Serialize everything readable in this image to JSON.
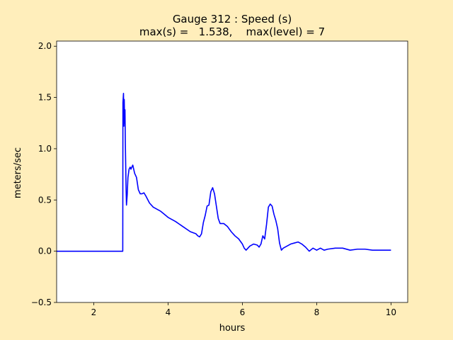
{
  "chart_data": {
    "type": "line",
    "title": "Gauge 312 : Speed (s)",
    "subtitle": "max(s) =   1.538,    max(level) = 7",
    "xlabel": "hours",
    "ylabel": "meters/sec",
    "xlim": [
      1.0,
      10.45
    ],
    "ylim": [
      -0.5,
      2.05
    ],
    "xticks": [
      2,
      4,
      6,
      8,
      10
    ],
    "yticks": [
      -0.5,
      0.0,
      0.5,
      1.0,
      1.5,
      2.0
    ],
    "ytick_labels": [
      "−0.5",
      "0.0",
      "0.5",
      "1.0",
      "1.5",
      "2.0"
    ],
    "grid": false,
    "background_color": "#ffeebb",
    "plot_color": "#ffffff",
    "series": [
      {
        "color": "#0000ff",
        "x": [
          1.0,
          2.78,
          2.785,
          2.8,
          2.81,
          2.82,
          2.83,
          2.84,
          2.85,
          2.86,
          2.87,
          2.88,
          2.9,
          2.92,
          2.95,
          2.98,
          3.0,
          3.05,
          3.1,
          3.15,
          3.2,
          3.25,
          3.3,
          3.35,
          3.4,
          3.5,
          3.6,
          3.7,
          3.8,
          3.9,
          4.0,
          4.2,
          4.4,
          4.6,
          4.75,
          4.8,
          4.85,
          4.9,
          4.95,
          5.0,
          5.05,
          5.1,
          5.15,
          5.2,
          5.25,
          5.3,
          5.35,
          5.4,
          5.5,
          5.6,
          5.7,
          5.8,
          5.9,
          6.0,
          6.05,
          6.1,
          6.15,
          6.2,
          6.3,
          6.4,
          6.45,
          6.5,
          6.55,
          6.6,
          6.65,
          6.7,
          6.75,
          6.8,
          6.85,
          6.9,
          6.95,
          7.0,
          7.05,
          7.1,
          7.2,
          7.3,
          7.4,
          7.5,
          7.55,
          7.6,
          7.7,
          7.8,
          7.9,
          8.0,
          8.1,
          8.2,
          8.3,
          8.5,
          8.7,
          8.9,
          9.1,
          9.3,
          9.5,
          9.7,
          9.9,
          10.0
        ],
        "y": [
          0.0,
          0.0,
          1.45,
          1.54,
          1.22,
          1.48,
          1.25,
          1.38,
          1.05,
          0.82,
          0.6,
          0.45,
          0.55,
          0.72,
          0.8,
          0.82,
          0.8,
          0.84,
          0.76,
          0.72,
          0.6,
          0.56,
          0.56,
          0.57,
          0.54,
          0.47,
          0.43,
          0.41,
          0.39,
          0.36,
          0.33,
          0.29,
          0.24,
          0.19,
          0.17,
          0.15,
          0.14,
          0.17,
          0.28,
          0.35,
          0.44,
          0.45,
          0.58,
          0.62,
          0.56,
          0.44,
          0.32,
          0.27,
          0.27,
          0.24,
          0.19,
          0.15,
          0.12,
          0.07,
          0.03,
          0.01,
          0.03,
          0.05,
          0.07,
          0.06,
          0.04,
          0.07,
          0.15,
          0.12,
          0.26,
          0.43,
          0.46,
          0.44,
          0.36,
          0.3,
          0.22,
          0.08,
          0.01,
          0.03,
          0.05,
          0.07,
          0.08,
          0.09,
          0.08,
          0.07,
          0.04,
          0.0,
          0.03,
          0.01,
          0.03,
          0.01,
          0.02,
          0.03,
          0.03,
          0.01,
          0.02,
          0.02,
          0.01,
          0.01,
          0.01,
          0.01
        ]
      }
    ]
  }
}
